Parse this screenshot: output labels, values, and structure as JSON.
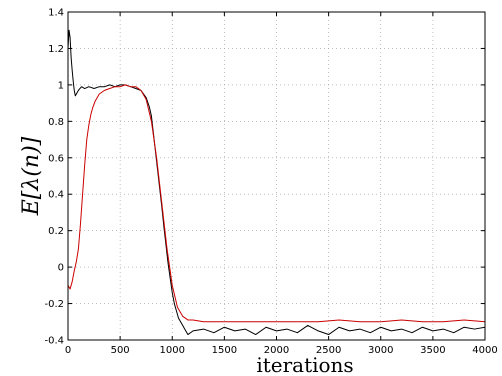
{
  "chart_data": {
    "type": "line",
    "title": "",
    "xlabel": "iterations",
    "ylabel": "E[λ(n)]",
    "xlim": [
      0,
      4000
    ],
    "ylim": [
      -0.4,
      1.4
    ],
    "xticks": [
      0,
      500,
      1000,
      1500,
      2000,
      2500,
      3000,
      3500,
      4000
    ],
    "yticks": [
      -0.4,
      -0.2,
      0,
      0.2,
      0.4,
      0.6,
      0.8,
      1,
      1.2,
      1.4
    ],
    "grid": true,
    "legend": "none",
    "series": [
      {
        "color": "#000000",
        "x": [
          0,
          10,
          20,
          30,
          40,
          50,
          60,
          70,
          80,
          100,
          130,
          160,
          200,
          250,
          300,
          350,
          400,
          450,
          500,
          550,
          600,
          650,
          700,
          750,
          780,
          800,
          820,
          840,
          860,
          880,
          900,
          920,
          940,
          960,
          980,
          1000,
          1020,
          1040,
          1060,
          1080,
          1100,
          1120,
          1150,
          1200,
          1300,
          1400,
          1500,
          1600,
          1700,
          1800,
          1900,
          2000,
          2100,
          2200,
          2300,
          2400,
          2500,
          2600,
          2700,
          2800,
          2900,
          3000,
          3100,
          3200,
          3300,
          3400,
          3500,
          3600,
          3700,
          3800,
          3900,
          4000
        ],
        "y": [
          1.2,
          1.3,
          1.26,
          1.15,
          1.08,
          1.02,
          0.97,
          0.94,
          0.95,
          0.97,
          0.99,
          0.98,
          0.99,
          0.98,
          0.99,
          0.99,
          1.0,
          0.99,
          1.0,
          1.0,
          0.99,
          0.98,
          0.97,
          0.93,
          0.88,
          0.83,
          0.73,
          0.63,
          0.53,
          0.43,
          0.33,
          0.22,
          0.12,
          0.02,
          -0.06,
          -0.14,
          -0.2,
          -0.24,
          -0.28,
          -0.3,
          -0.32,
          -0.34,
          -0.37,
          -0.35,
          -0.34,
          -0.36,
          -0.33,
          -0.35,
          -0.34,
          -0.37,
          -0.33,
          -0.35,
          -0.34,
          -0.36,
          -0.32,
          -0.35,
          -0.37,
          -0.33,
          -0.35,
          -0.34,
          -0.36,
          -0.33,
          -0.35,
          -0.34,
          -0.36,
          -0.33,
          -0.35,
          -0.34,
          -0.36,
          -0.33,
          -0.34,
          -0.33
        ]
      },
      {
        "color": "#cc0000",
        "x": [
          0,
          20,
          40,
          60,
          80,
          100,
          120,
          140,
          160,
          180,
          200,
          220,
          240,
          260,
          280,
          300,
          350,
          400,
          450,
          500,
          550,
          600,
          650,
          700,
          750,
          800,
          850,
          900,
          950,
          1000,
          1050,
          1100,
          1150,
          1200,
          1300,
          1400,
          1500,
          1600,
          1800,
          2000,
          2200,
          2400,
          2600,
          2800,
          3000,
          3200,
          3400,
          3600,
          3800,
          4000
        ],
        "y": [
          -0.1,
          -0.12,
          -0.08,
          -0.02,
          0.03,
          0.1,
          0.24,
          0.4,
          0.56,
          0.7,
          0.78,
          0.84,
          0.88,
          0.91,
          0.93,
          0.95,
          0.97,
          0.98,
          0.99,
          0.99,
          1.0,
          0.99,
          0.99,
          0.97,
          0.92,
          0.8,
          0.6,
          0.35,
          0.1,
          -0.1,
          -0.22,
          -0.27,
          -0.29,
          -0.29,
          -0.3,
          -0.3,
          -0.3,
          -0.3,
          -0.3,
          -0.3,
          -0.3,
          -0.3,
          -0.29,
          -0.3,
          -0.3,
          -0.29,
          -0.3,
          -0.3,
          -0.29,
          -0.3
        ]
      }
    ]
  }
}
